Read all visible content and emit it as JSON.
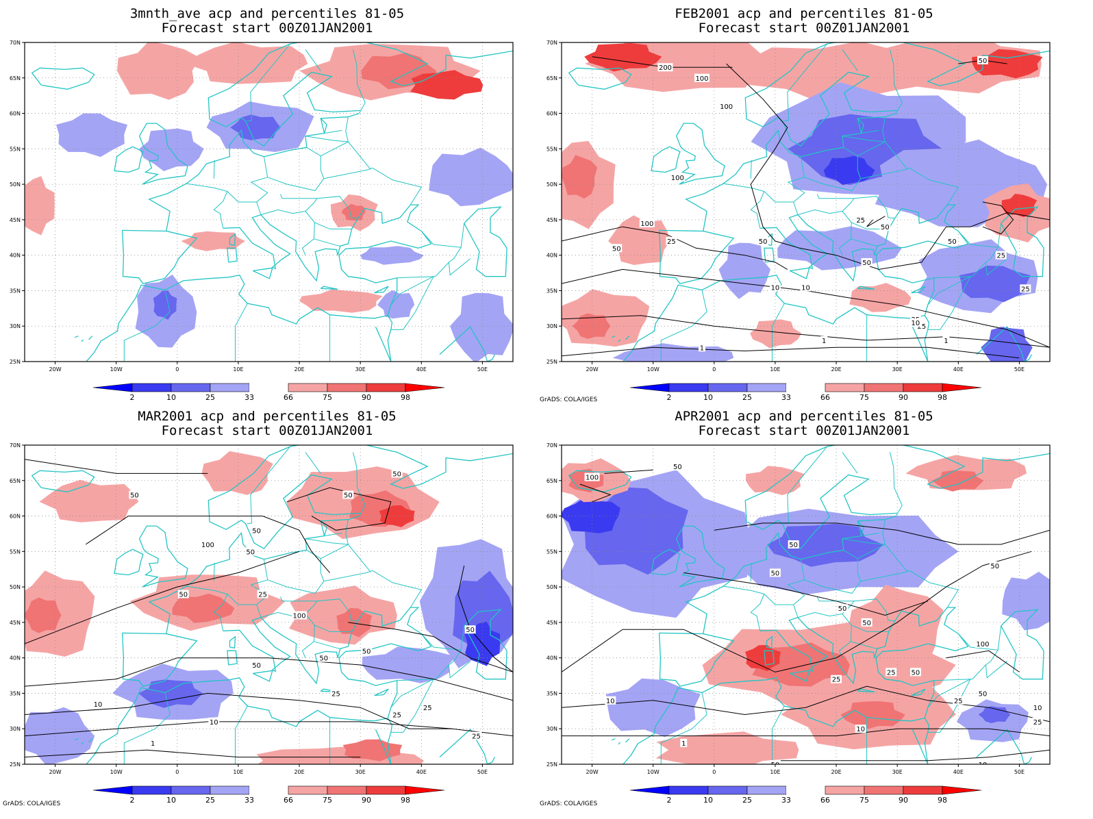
{
  "panels": [
    {
      "title1": "3mnth_ave acp and percentiles 81-05",
      "title2": "Forecast start 00Z01JAN2001",
      "credit": ""
    },
    {
      "title1": "FEB2001 acp and percentiles 81-05",
      "title2": "Forecast start 00Z01JAN2001",
      "credit": "GrADS: COLA/IGES"
    },
    {
      "title1": "MAR2001 acp and percentiles 81-05",
      "title2": "Forecast start 00Z01JAN2001",
      "credit": "GrADS: COLA/IGES"
    },
    {
      "title1": "APR2001 acp and percentiles 81-05",
      "title2": "Forecast start 00Z01JAN2001",
      "credit": "GrADS: COLA/IGES"
    }
  ],
  "map": {
    "lat_ticks": [
      "25N",
      "30N",
      "35N",
      "40N",
      "45N",
      "50N",
      "55N",
      "60N",
      "65N",
      "70N"
    ],
    "lon_ticks": [
      "20W",
      "10W",
      "0",
      "10E",
      "20E",
      "30E",
      "40E",
      "50E"
    ]
  },
  "colorbar": {
    "labels": [
      "2",
      "10",
      "25",
      "33",
      "66",
      "75",
      "90",
      "98"
    ],
    "colors": {
      "below2": "#0000ff",
      "2-10": "#3a3af0",
      "10-25": "#6666ee",
      "25-33": "#a4a4f5",
      "66-75": "#f5a4a4",
      "75-90": "#f07474",
      "90-98": "#ee3c3c",
      "above98": "#ff0000"
    }
  },
  "contour_labels": {
    "feb": [
      "50",
      "100",
      "200",
      "100",
      "100",
      "100",
      "50",
      "50",
      "25",
      "50",
      "25",
      "50",
      "10",
      "25",
      "25",
      "10",
      "10",
      "1",
      "1",
      "1",
      "25",
      "50",
      "25"
    ],
    "mar": [
      "50",
      "50",
      "100",
      "50",
      "50",
      "50",
      "100",
      "50",
      "25",
      "50",
      "50",
      "50",
      "25",
      "25",
      "10",
      "10",
      "1",
      "25",
      "50",
      "25"
    ],
    "apr": [
      "50",
      "100",
      "50",
      "50",
      "50",
      "50",
      "50",
      "100",
      "50",
      "25",
      "25",
      "50",
      "25",
      "10",
      "10",
      "1",
      "10",
      "10",
      "50",
      "25"
    ]
  },
  "colors": {
    "coast": "#22c4c4",
    "frame": "#000000",
    "contour": "#000000",
    "grid": "#888888"
  }
}
